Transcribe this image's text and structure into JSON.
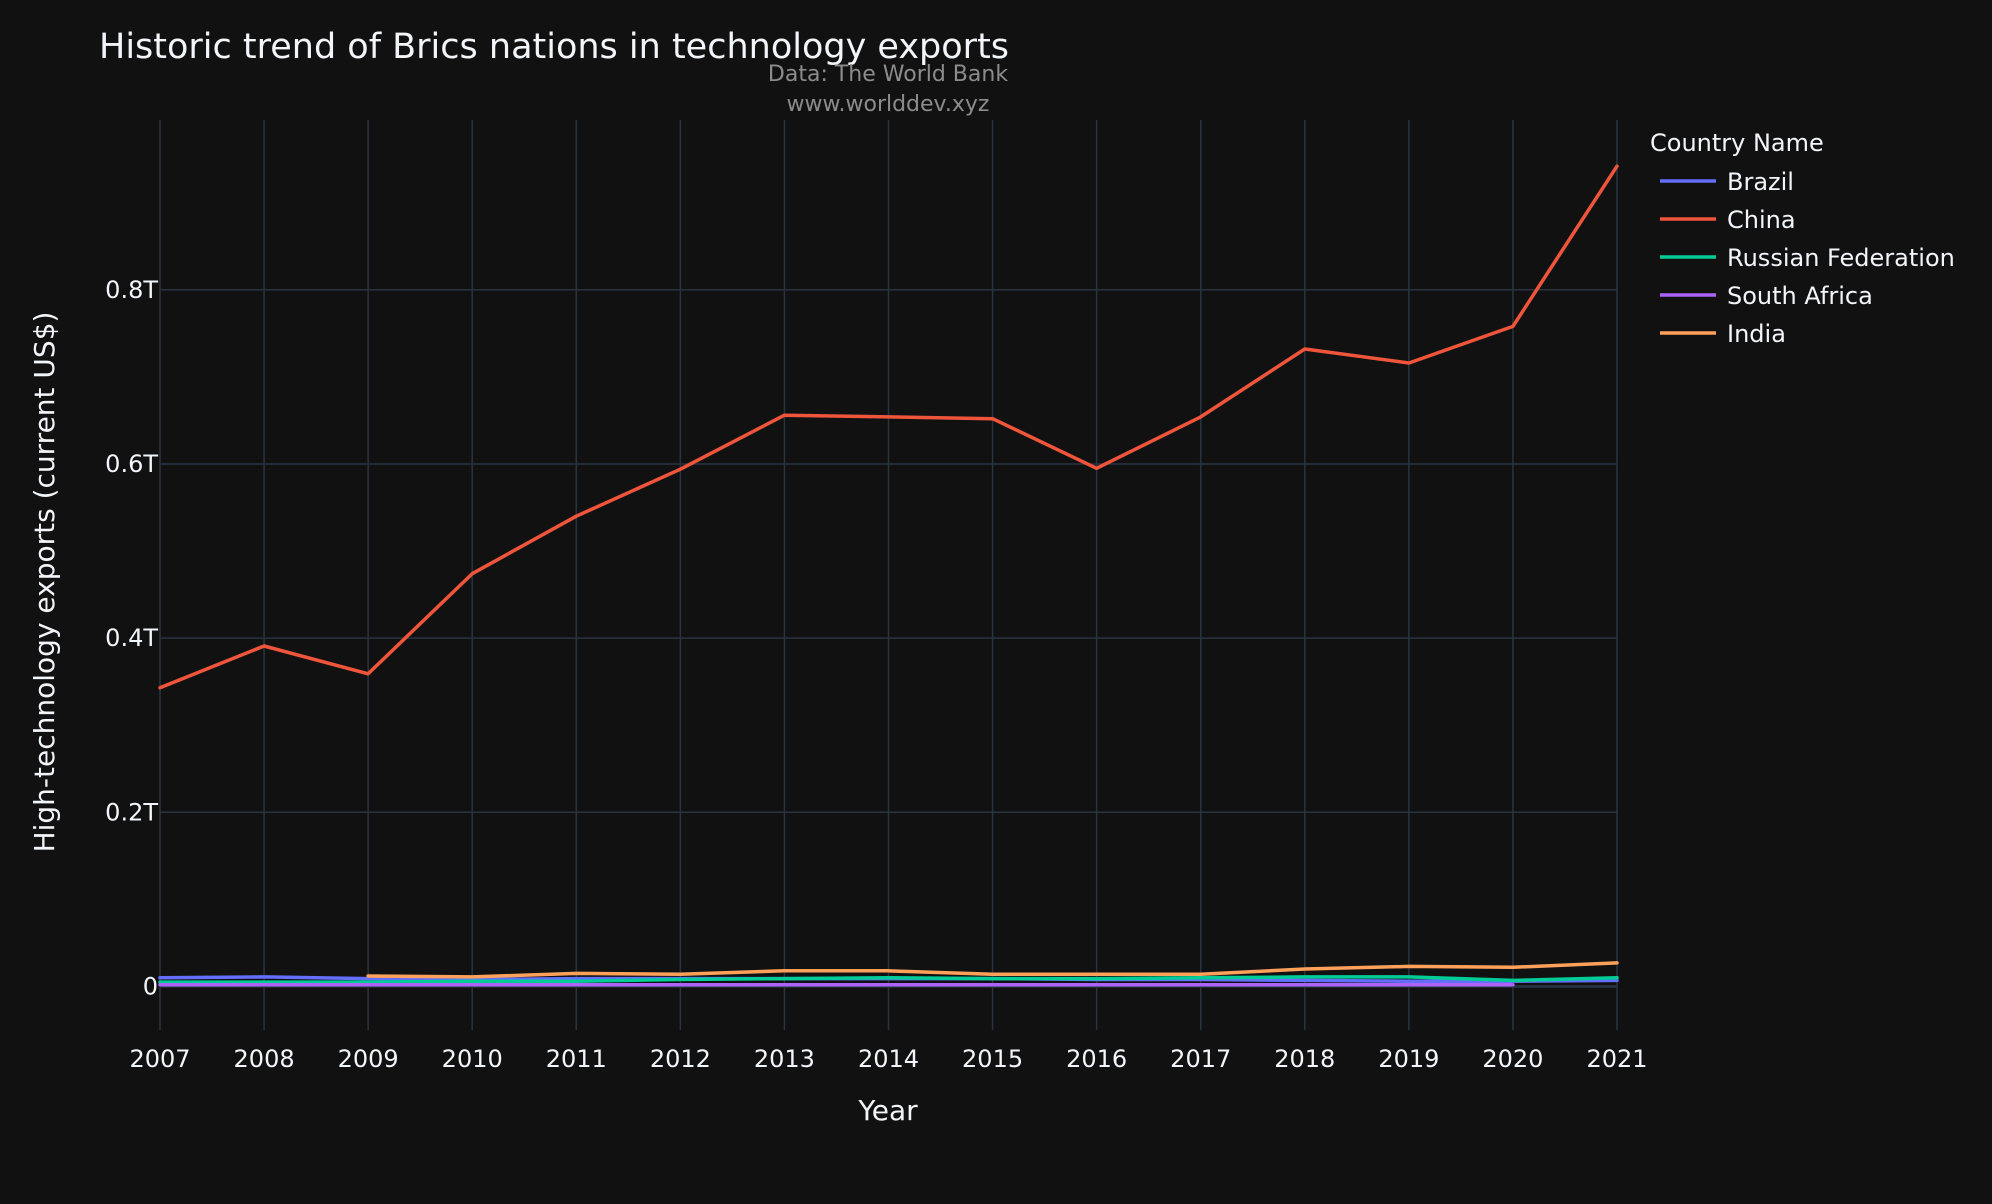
{
  "chart_data": {
    "type": "line",
    "title": "Historic trend of Brics nations in technology exports",
    "annotation_lines": [
      "Data: The World Bank",
      "www.worlddev.xyz"
    ],
    "xlabel": "Year",
    "ylabel": "High-technology exports (current US$)",
    "x": [
      2007,
      2008,
      2009,
      2010,
      2011,
      2012,
      2013,
      2014,
      2015,
      2016,
      2017,
      2018,
      2019,
      2020,
      2021
    ],
    "x_tick_labels": [
      "2007",
      "2008",
      "2009",
      "2010",
      "2011",
      "2012",
      "2013",
      "2014",
      "2015",
      "2016",
      "2017",
      "2018",
      "2019",
      "2020",
      "2021"
    ],
    "y_ticks": [
      0,
      200000000000,
      400000000000,
      600000000000,
      800000000000
    ],
    "y_tick_labels": [
      "0",
      "0.2T",
      "0.4T",
      "0.6T",
      "0.8T"
    ],
    "xlim": [
      2007,
      2021
    ],
    "ylim": [
      -50000000000,
      995000000000
    ],
    "grid": true,
    "legend_title": "Country Name",
    "legend_position": "right",
    "series": [
      {
        "name": "Brazil",
        "color": "#636efa",
        "values": [
          10000000000,
          11000000000,
          9000000000,
          8000000000,
          9000000000,
          9000000000,
          9000000000,
          9000000000,
          9000000000,
          8000000000,
          8000000000,
          7000000000,
          6000000000,
          6000000000,
          7000000000
        ]
      },
      {
        "name": "China",
        "color": "#ef553b",
        "values": [
          343000000000,
          391000000000,
          359000000000,
          474000000000,
          540000000000,
          594000000000,
          656000000000,
          654000000000,
          652000000000,
          595000000000,
          654000000000,
          732000000000,
          716000000000,
          758000000000,
          942000000000
        ]
      },
      {
        "name": "Russian Federation",
        "color": "#00cc96",
        "values": [
          5000000000,
          5000000000,
          5000000000,
          6000000000,
          6000000000,
          8000000000,
          9000000000,
          10000000000,
          9000000000,
          9000000000,
          10000000000,
          11000000000,
          11000000000,
          7000000000,
          10000000000
        ]
      },
      {
        "name": "South Africa",
        "color": "#ab63fa",
        "values": [
          2000000000,
          2000000000,
          2000000000,
          2000000000,
          2000000000,
          2000000000,
          2000000000,
          2000000000,
          2000000000,
          2000000000,
          2000000000,
          2000000000,
          2000000000,
          2000000000,
          null
        ]
      },
      {
        "name": "India",
        "color": "#ffa15a",
        "values": [
          null,
          null,
          12000000000,
          11000000000,
          15000000000,
          14000000000,
          18000000000,
          18000000000,
          14000000000,
          14000000000,
          14000000000,
          20000000000,
          23000000000,
          22000000000,
          27000000000
        ]
      }
    ]
  }
}
